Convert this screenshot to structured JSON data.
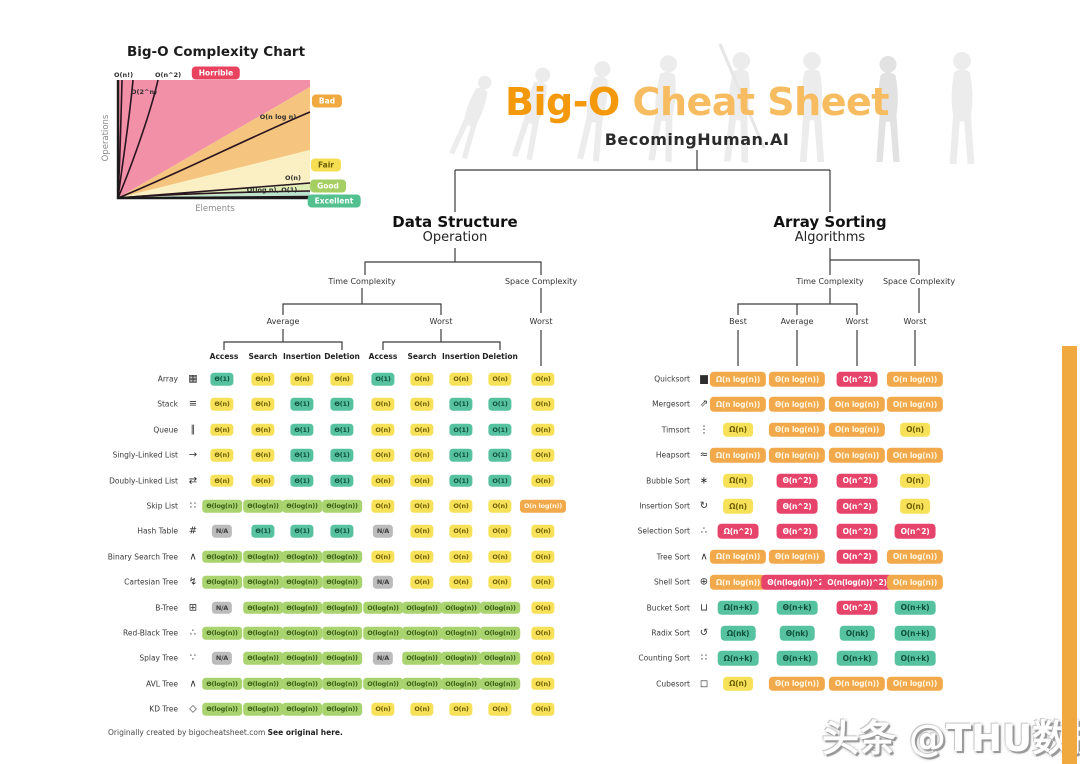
{
  "page": {
    "watermark": "头条 @THU数据派",
    "footer_note": "Originally created by bigocheatsheet.com",
    "footer_link": "See original here.",
    "accent_bar_color": "#F0A93E"
  },
  "header": {
    "title_primary": "Big-O",
    "title_secondary": "Cheat Sheet",
    "subtitle": "BecomingHuman.AI"
  },
  "complexity_chart": {
    "title": "Big-O Complexity Chart",
    "xlabel": "Elements",
    "ylabel": "Operations",
    "ratings": [
      {
        "label": "Horrible",
        "color": "#E8425F"
      },
      {
        "label": "Bad",
        "color": "#F0A93E"
      },
      {
        "label": "Fair",
        "color": "#F5DE51"
      },
      {
        "label": "Good",
        "color": "#A5CE63"
      },
      {
        "label": "Excellent",
        "color": "#53C08F"
      }
    ],
    "region_colors": {
      "horrible": "#F290A8",
      "bad": "#F5C57F",
      "fair": "#FAF0C3",
      "good": "#DDEDB5",
      "excellent": "#BCE3CE"
    },
    "curve_labels": [
      "O(n!)",
      "O(n^2)",
      "O(2^n)",
      "O(n log n)",
      "O(n)",
      "O(log n), O(1)"
    ]
  },
  "ds_table": {
    "root_bold": "Data Structure",
    "root_sub": "Operation",
    "time_branch": "Time Complexity",
    "space_branch": "Space Complexity",
    "group_average": "Average",
    "group_worst": "Worst",
    "space_worst": "Worst",
    "columns": [
      "Access",
      "Search",
      "Insertion",
      "Deletion"
    ],
    "rows": [
      {
        "label": "Array",
        "icon": "array-icon",
        "cells": [
          [
            "Θ(1)",
            "g"
          ],
          [
            "Θ(n)",
            "y"
          ],
          [
            "Θ(n)",
            "y"
          ],
          [
            "Θ(n)",
            "y"
          ],
          [
            "O(1)",
            "g"
          ],
          [
            "O(n)",
            "y"
          ],
          [
            "O(n)",
            "y"
          ],
          [
            "O(n)",
            "y"
          ],
          [
            "O(n)",
            "y"
          ]
        ]
      },
      {
        "label": "Stack",
        "icon": "stack-icon",
        "cells": [
          [
            "Θ(n)",
            "y"
          ],
          [
            "Θ(n)",
            "y"
          ],
          [
            "Θ(1)",
            "g"
          ],
          [
            "Θ(1)",
            "g"
          ],
          [
            "O(n)",
            "y"
          ],
          [
            "O(n)",
            "y"
          ],
          [
            "O(1)",
            "g"
          ],
          [
            "O(1)",
            "g"
          ],
          [
            "O(n)",
            "y"
          ]
        ]
      },
      {
        "label": "Queue",
        "icon": "queue-icon",
        "cells": [
          [
            "Θ(n)",
            "y"
          ],
          [
            "Θ(n)",
            "y"
          ],
          [
            "Θ(1)",
            "g"
          ],
          [
            "Θ(1)",
            "g"
          ],
          [
            "O(n)",
            "y"
          ],
          [
            "O(n)",
            "y"
          ],
          [
            "O(1)",
            "g"
          ],
          [
            "O(1)",
            "g"
          ],
          [
            "O(n)",
            "y"
          ]
        ]
      },
      {
        "label": "Singly-Linked List",
        "icon": "singly-linked-list-icon",
        "cells": [
          [
            "Θ(n)",
            "y"
          ],
          [
            "Θ(n)",
            "y"
          ],
          [
            "Θ(1)",
            "g"
          ],
          [
            "Θ(1)",
            "g"
          ],
          [
            "O(n)",
            "y"
          ],
          [
            "O(n)",
            "y"
          ],
          [
            "O(1)",
            "g"
          ],
          [
            "O(1)",
            "g"
          ],
          [
            "O(n)",
            "y"
          ]
        ]
      },
      {
        "label": "Doubly-Linked List",
        "icon": "doubly-linked-list-icon",
        "cells": [
          [
            "Θ(n)",
            "y"
          ],
          [
            "Θ(n)",
            "y"
          ],
          [
            "Θ(1)",
            "g"
          ],
          [
            "Θ(1)",
            "g"
          ],
          [
            "O(n)",
            "y"
          ],
          [
            "O(n)",
            "y"
          ],
          [
            "O(1)",
            "g"
          ],
          [
            "O(1)",
            "g"
          ],
          [
            "O(n)",
            "y"
          ]
        ]
      },
      {
        "label": "Skip List",
        "icon": "skip-list-icon",
        "cells": [
          [
            "Θ(log(n))",
            "lg"
          ],
          [
            "Θ(log(n))",
            "lg"
          ],
          [
            "Θ(log(n))",
            "lg"
          ],
          [
            "Θ(log(n))",
            "lg"
          ],
          [
            "O(n)",
            "y"
          ],
          [
            "O(n)",
            "y"
          ],
          [
            "O(n)",
            "y"
          ],
          [
            "O(n)",
            "y"
          ],
          [
            "O(n log(n))",
            "o"
          ]
        ]
      },
      {
        "label": "Hash Table",
        "icon": "hash-table-icon",
        "cells": [
          [
            "N/A",
            "na"
          ],
          [
            "Θ(1)",
            "g"
          ],
          [
            "Θ(1)",
            "g"
          ],
          [
            "Θ(1)",
            "g"
          ],
          [
            "N/A",
            "na"
          ],
          [
            "O(n)",
            "y"
          ],
          [
            "O(n)",
            "y"
          ],
          [
            "O(n)",
            "y"
          ],
          [
            "O(n)",
            "y"
          ]
        ]
      },
      {
        "label": "Binary Search Tree",
        "icon": "binary-search-tree-icon",
        "cells": [
          [
            "Θ(log(n))",
            "lg"
          ],
          [
            "Θ(log(n))",
            "lg"
          ],
          [
            "Θ(log(n))",
            "lg"
          ],
          [
            "Θ(log(n))",
            "lg"
          ],
          [
            "O(n)",
            "y"
          ],
          [
            "O(n)",
            "y"
          ],
          [
            "O(n)",
            "y"
          ],
          [
            "O(n)",
            "y"
          ],
          [
            "O(n)",
            "y"
          ]
        ]
      },
      {
        "label": "Cartesian Tree",
        "icon": "cartesian-tree-icon",
        "cells": [
          [
            "Θ(log(n))",
            "lg"
          ],
          [
            "Θ(log(n))",
            "lg"
          ],
          [
            "Θ(log(n))",
            "lg"
          ],
          [
            "Θ(log(n))",
            "lg"
          ],
          [
            "N/A",
            "na"
          ],
          [
            "O(n)",
            "y"
          ],
          [
            "O(n)",
            "y"
          ],
          [
            "O(n)",
            "y"
          ],
          [
            "O(n)",
            "y"
          ]
        ]
      },
      {
        "label": "B-Tree",
        "icon": "b-tree-icon",
        "cells": [
          [
            "N/A",
            "na"
          ],
          [
            "Θ(log(n))",
            "lg"
          ],
          [
            "Θ(log(n))",
            "lg"
          ],
          [
            "Θ(log(n))",
            "lg"
          ],
          [
            "O(log(n))",
            "lg"
          ],
          [
            "O(log(n))",
            "lg"
          ],
          [
            "O(log(n))",
            "lg"
          ],
          [
            "O(log(n))",
            "lg"
          ],
          [
            "O(n)",
            "y"
          ]
        ]
      },
      {
        "label": "Red-Black Tree",
        "icon": "red-black-tree-icon",
        "cells": [
          [
            "Θ(log(n))",
            "lg"
          ],
          [
            "Θ(log(n))",
            "lg"
          ],
          [
            "Θ(log(n))",
            "lg"
          ],
          [
            "Θ(log(n))",
            "lg"
          ],
          [
            "O(log(n))",
            "lg"
          ],
          [
            "O(log(n))",
            "lg"
          ],
          [
            "O(log(n))",
            "lg"
          ],
          [
            "O(log(n))",
            "lg"
          ],
          [
            "O(n)",
            "y"
          ]
        ]
      },
      {
        "label": "Splay Tree",
        "icon": "splay-tree-icon",
        "cells": [
          [
            "N/A",
            "na"
          ],
          [
            "Θ(log(n))",
            "lg"
          ],
          [
            "Θ(log(n))",
            "lg"
          ],
          [
            "Θ(log(n))",
            "lg"
          ],
          [
            "N/A",
            "na"
          ],
          [
            "O(log(n))",
            "lg"
          ],
          [
            "O(log(n))",
            "lg"
          ],
          [
            "O(log(n))",
            "lg"
          ],
          [
            "O(n)",
            "y"
          ]
        ]
      },
      {
        "label": "AVL Tree",
        "icon": "avl-tree-icon",
        "cells": [
          [
            "Θ(log(n))",
            "lg"
          ],
          [
            "Θ(log(n))",
            "lg"
          ],
          [
            "Θ(log(n))",
            "lg"
          ],
          [
            "Θ(log(n))",
            "lg"
          ],
          [
            "O(log(n))",
            "lg"
          ],
          [
            "O(log(n))",
            "lg"
          ],
          [
            "O(log(n))",
            "lg"
          ],
          [
            "O(log(n))",
            "lg"
          ],
          [
            "O(n)",
            "y"
          ]
        ]
      },
      {
        "label": "KD Tree",
        "icon": "kd-tree-icon",
        "cells": [
          [
            "Θ(log(n))",
            "lg"
          ],
          [
            "Θ(log(n))",
            "lg"
          ],
          [
            "Θ(log(n))",
            "lg"
          ],
          [
            "Θ(log(n))",
            "lg"
          ],
          [
            "O(n)",
            "y"
          ],
          [
            "O(n)",
            "y"
          ],
          [
            "O(n)",
            "y"
          ],
          [
            "O(n)",
            "y"
          ],
          [
            "O(n)",
            "y"
          ]
        ]
      }
    ]
  },
  "sort_table": {
    "root_bold": "Array Sorting",
    "root_sub": "Algorithms",
    "time_branch": "Time Complexity",
    "space_branch": "Space Complexity",
    "group_best": "Best",
    "group_average": "Average",
    "group_worst": "Worst",
    "space_worst": "Worst",
    "rows": [
      {
        "label": "Quicksort",
        "icon": "quicksort-icon",
        "cells": [
          [
            "Ω(n log(n))",
            "o"
          ],
          [
            "Θ(n log(n))",
            "o"
          ],
          [
            "O(n^2)",
            "r"
          ],
          [
            "O(n log(n))",
            "o"
          ]
        ]
      },
      {
        "label": "Mergesort",
        "icon": "mergesort-icon",
        "cells": [
          [
            "Ω(n log(n))",
            "o"
          ],
          [
            "Θ(n log(n))",
            "o"
          ],
          [
            "O(n log(n))",
            "o"
          ],
          [
            "O(n log(n))",
            "o"
          ]
        ]
      },
      {
        "label": "Timsort",
        "icon": "timsort-icon",
        "cells": [
          [
            "Ω(n)",
            "y"
          ],
          [
            "Θ(n log(n))",
            "o"
          ],
          [
            "O(n log(n))",
            "o"
          ],
          [
            "O(n)",
            "y"
          ]
        ]
      },
      {
        "label": "Heapsort",
        "icon": "heapsort-icon",
        "cells": [
          [
            "Ω(n log(n))",
            "o"
          ],
          [
            "Θ(n log(n))",
            "o"
          ],
          [
            "O(n log(n))",
            "o"
          ],
          [
            "O(n log(n))",
            "o"
          ]
        ]
      },
      {
        "label": "Bubble Sort",
        "icon": "bubble-sort-icon",
        "cells": [
          [
            "Ω(n)",
            "y"
          ],
          [
            "Θ(n^2)",
            "r"
          ],
          [
            "O(n^2)",
            "r"
          ],
          [
            "O(n)",
            "y"
          ]
        ]
      },
      {
        "label": "Insertion Sort",
        "icon": "insertion-sort-icon",
        "cells": [
          [
            "Ω(n)",
            "y"
          ],
          [
            "Θ(n^2)",
            "r"
          ],
          [
            "O(n^2)",
            "r"
          ],
          [
            "O(n)",
            "y"
          ]
        ]
      },
      {
        "label": "Selection Sort",
        "icon": "selection-sort-icon",
        "cells": [
          [
            "Ω(n^2)",
            "r"
          ],
          [
            "Θ(n^2)",
            "r"
          ],
          [
            "O(n^2)",
            "r"
          ],
          [
            "O(n^2)",
            "r"
          ]
        ]
      },
      {
        "label": "Tree Sort",
        "icon": "tree-sort-icon",
        "cells": [
          [
            "Ω(n log(n))",
            "o"
          ],
          [
            "Θ(n log(n))",
            "o"
          ],
          [
            "O(n^2)",
            "r"
          ],
          [
            "O(n log(n))",
            "o"
          ]
        ]
      },
      {
        "label": "Shell Sort",
        "icon": "shell-sort-icon",
        "cells": [
          [
            "Ω(n log(n))",
            "o"
          ],
          [
            "Θ(n(log(n))^2)",
            "r"
          ],
          [
            "O(n(log(n))^2)",
            "r"
          ],
          [
            "O(n log(n))",
            "o"
          ]
        ]
      },
      {
        "label": "Bucket Sort",
        "icon": "bucket-sort-icon",
        "cells": [
          [
            "Ω(n+k)",
            "g"
          ],
          [
            "Θ(n+k)",
            "g"
          ],
          [
            "O(n^2)",
            "r"
          ],
          [
            "O(n+k)",
            "g"
          ]
        ]
      },
      {
        "label": "Radix Sort",
        "icon": "radix-sort-icon",
        "cells": [
          [
            "Ω(nk)",
            "g"
          ],
          [
            "Θ(nk)",
            "g"
          ],
          [
            "O(nk)",
            "g"
          ],
          [
            "O(n+k)",
            "g"
          ]
        ]
      },
      {
        "label": "Counting Sort",
        "icon": "counting-sort-icon",
        "cells": [
          [
            "Ω(n+k)",
            "g"
          ],
          [
            "Θ(n+k)",
            "g"
          ],
          [
            "O(n+k)",
            "g"
          ],
          [
            "O(n+k)",
            "g"
          ]
        ]
      },
      {
        "label": "Cubesort",
        "icon": "cubesort-icon",
        "cells": [
          [
            "Ω(n)",
            "y"
          ],
          [
            "Θ(n log(n))",
            "o"
          ],
          [
            "O(n log(n))",
            "o"
          ],
          [
            "O(n log(n))",
            "o"
          ]
        ]
      }
    ]
  },
  "icon_glyphs": {
    "array-icon": "▦",
    "stack-icon": "≡",
    "queue-icon": "∥",
    "singly-linked-list-icon": "→",
    "doubly-linked-list-icon": "⇄",
    "skip-list-icon": "∷",
    "hash-table-icon": "#",
    "binary-search-tree-icon": "∧",
    "cartesian-tree-icon": "↯",
    "b-tree-icon": "⊞",
    "red-black-tree-icon": "∴",
    "splay-tree-icon": "∵",
    "avl-tree-icon": "∧",
    "kd-tree-icon": "◇",
    "quicksort-icon": "▆",
    "mergesort-icon": "⇗",
    "timsort-icon": "⋮",
    "heapsort-icon": "≈",
    "bubble-sort-icon": "∗",
    "insertion-sort-icon": "↻",
    "selection-sort-icon": "∴",
    "tree-sort-icon": "∧",
    "shell-sort-icon": "⊕",
    "bucket-sort-icon": "⊔",
    "radix-sort-icon": "↺",
    "counting-sort-icon": "∷",
    "cubesort-icon": "◻"
  }
}
